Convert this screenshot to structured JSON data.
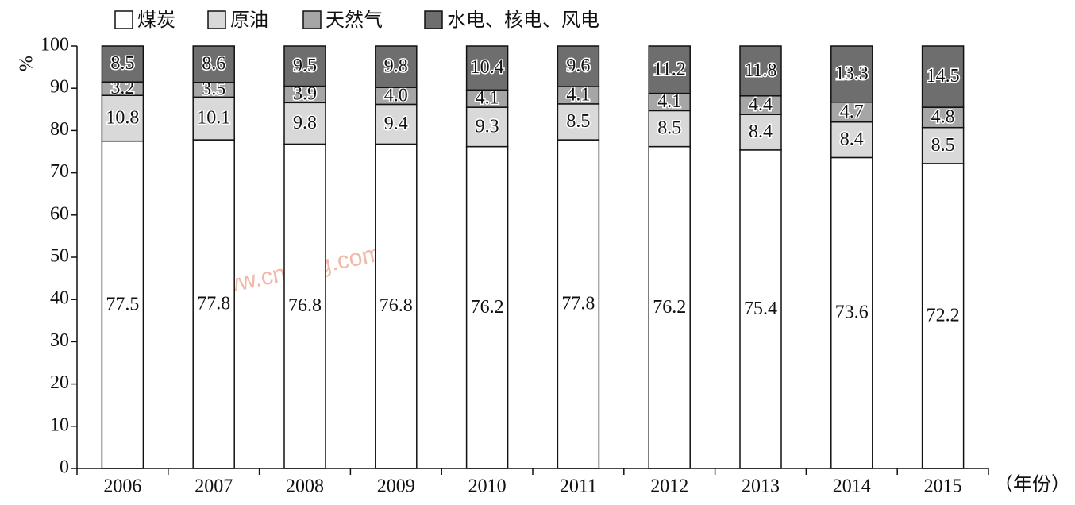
{
  "chart_data": {
    "type": "stacked_bar",
    "categories": [
      "2006",
      "2007",
      "2008",
      "2009",
      "2010",
      "2011",
      "2012",
      "2013",
      "2014",
      "2015"
    ],
    "series": [
      {
        "name": "煤炭",
        "color": "#ffffff",
        "values": [
          77.5,
          77.8,
          76.8,
          76.8,
          76.2,
          77.8,
          76.2,
          75.4,
          73.6,
          72.2
        ]
      },
      {
        "name": "原油",
        "color": "#d9d9d9",
        "values": [
          10.8,
          10.1,
          9.8,
          9.4,
          9.3,
          8.5,
          8.5,
          8.4,
          8.4,
          8.5
        ]
      },
      {
        "name": "天然气",
        "color": "#a6a6a6",
        "values": [
          3.2,
          3.5,
          3.9,
          4.0,
          4.1,
          4.1,
          4.1,
          4.4,
          4.7,
          4.8
        ],
        "value_labels": [
          "3.2",
          "3.5",
          "3.9",
          "4.0",
          "4.1",
          "4.1",
          "4.1",
          "4.4",
          "4.7",
          "4.8"
        ]
      },
      {
        "name": "水电、核电、风电",
        "color": "#6e6e6e",
        "values": [
          8.5,
          8.6,
          9.5,
          9.8,
          10.4,
          9.6,
          11.2,
          11.8,
          13.3,
          14.5
        ]
      }
    ],
    "y_label": "%",
    "x_label": "（年份）",
    "watermark": "www.cnmhg.com",
    "ylim": [
      0,
      100
    ],
    "yticks": [
      0,
      10,
      20,
      30,
      40,
      50,
      60,
      70,
      80,
      90,
      100
    ]
  }
}
